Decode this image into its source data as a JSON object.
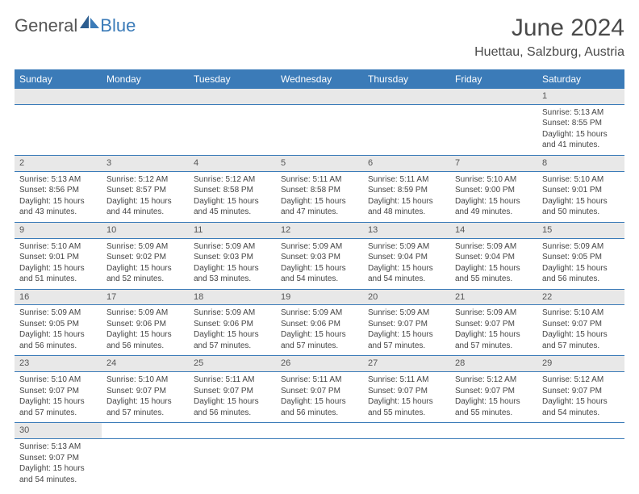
{
  "logo": {
    "text1": "General",
    "text2": "Blue"
  },
  "title": "June 2024",
  "location": "Huettau, Salzburg, Austria",
  "colors": {
    "headerBg": "#3b7bb8",
    "headerText": "#ffffff",
    "dayNumBg": "#e8e8e8",
    "border": "#3b7bb8"
  },
  "dayHeaders": [
    "Sunday",
    "Monday",
    "Tuesday",
    "Wednesday",
    "Thursday",
    "Friday",
    "Saturday"
  ],
  "weeks": [
    {
      "nums": [
        "",
        "",
        "",
        "",
        "",
        "",
        "1"
      ],
      "cells": [
        "",
        "",
        "",
        "",
        "",
        "",
        "Sunrise: 5:13 AM|Sunset: 8:55 PM|Daylight: 15 hours and 41 minutes."
      ]
    },
    {
      "nums": [
        "2",
        "3",
        "4",
        "5",
        "6",
        "7",
        "8"
      ],
      "cells": [
        "Sunrise: 5:13 AM|Sunset: 8:56 PM|Daylight: 15 hours and 43 minutes.",
        "Sunrise: 5:12 AM|Sunset: 8:57 PM|Daylight: 15 hours and 44 minutes.",
        "Sunrise: 5:12 AM|Sunset: 8:58 PM|Daylight: 15 hours and 45 minutes.",
        "Sunrise: 5:11 AM|Sunset: 8:58 PM|Daylight: 15 hours and 47 minutes.",
        "Sunrise: 5:11 AM|Sunset: 8:59 PM|Daylight: 15 hours and 48 minutes.",
        "Sunrise: 5:10 AM|Sunset: 9:00 PM|Daylight: 15 hours and 49 minutes.",
        "Sunrise: 5:10 AM|Sunset: 9:01 PM|Daylight: 15 hours and 50 minutes."
      ]
    },
    {
      "nums": [
        "9",
        "10",
        "11",
        "12",
        "13",
        "14",
        "15"
      ],
      "cells": [
        "Sunrise: 5:10 AM|Sunset: 9:01 PM|Daylight: 15 hours and 51 minutes.",
        "Sunrise: 5:09 AM|Sunset: 9:02 PM|Daylight: 15 hours and 52 minutes.",
        "Sunrise: 5:09 AM|Sunset: 9:03 PM|Daylight: 15 hours and 53 minutes.",
        "Sunrise: 5:09 AM|Sunset: 9:03 PM|Daylight: 15 hours and 54 minutes.",
        "Sunrise: 5:09 AM|Sunset: 9:04 PM|Daylight: 15 hours and 54 minutes.",
        "Sunrise: 5:09 AM|Sunset: 9:04 PM|Daylight: 15 hours and 55 minutes.",
        "Sunrise: 5:09 AM|Sunset: 9:05 PM|Daylight: 15 hours and 56 minutes."
      ]
    },
    {
      "nums": [
        "16",
        "17",
        "18",
        "19",
        "20",
        "21",
        "22"
      ],
      "cells": [
        "Sunrise: 5:09 AM|Sunset: 9:05 PM|Daylight: 15 hours and 56 minutes.",
        "Sunrise: 5:09 AM|Sunset: 9:06 PM|Daylight: 15 hours and 56 minutes.",
        "Sunrise: 5:09 AM|Sunset: 9:06 PM|Daylight: 15 hours and 57 minutes.",
        "Sunrise: 5:09 AM|Sunset: 9:06 PM|Daylight: 15 hours and 57 minutes.",
        "Sunrise: 5:09 AM|Sunset: 9:07 PM|Daylight: 15 hours and 57 minutes.",
        "Sunrise: 5:09 AM|Sunset: 9:07 PM|Daylight: 15 hours and 57 minutes.",
        "Sunrise: 5:10 AM|Sunset: 9:07 PM|Daylight: 15 hours and 57 minutes."
      ]
    },
    {
      "nums": [
        "23",
        "24",
        "25",
        "26",
        "27",
        "28",
        "29"
      ],
      "cells": [
        "Sunrise: 5:10 AM|Sunset: 9:07 PM|Daylight: 15 hours and 57 minutes.",
        "Sunrise: 5:10 AM|Sunset: 9:07 PM|Daylight: 15 hours and 57 minutes.",
        "Sunrise: 5:11 AM|Sunset: 9:07 PM|Daylight: 15 hours and 56 minutes.",
        "Sunrise: 5:11 AM|Sunset: 9:07 PM|Daylight: 15 hours and 56 minutes.",
        "Sunrise: 5:11 AM|Sunset: 9:07 PM|Daylight: 15 hours and 55 minutes.",
        "Sunrise: 5:12 AM|Sunset: 9:07 PM|Daylight: 15 hours and 55 minutes.",
        "Sunrise: 5:12 AM|Sunset: 9:07 PM|Daylight: 15 hours and 54 minutes."
      ]
    },
    {
      "nums": [
        "30",
        "",
        "",
        "",
        "",
        "",
        ""
      ],
      "cells": [
        "Sunrise: 5:13 AM|Sunset: 9:07 PM|Daylight: 15 hours and 54 minutes.",
        "",
        "",
        "",
        "",
        "",
        ""
      ]
    }
  ]
}
